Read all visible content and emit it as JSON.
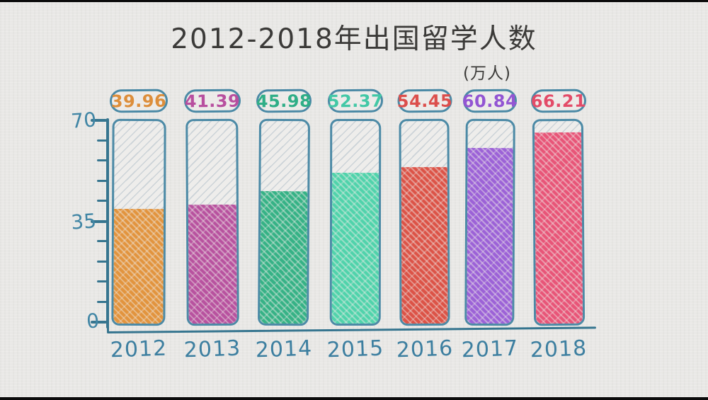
{
  "header": {
    "title": "2012-2018年出国留学人数",
    "unit": "(万人)"
  },
  "y_axis": {
    "labels": [
      "70",
      "35",
      "0"
    ],
    "max": 70,
    "min": 0,
    "minor_step": 7
  },
  "chart_data": {
    "type": "bar",
    "title": "2012-2018年出国留学人数",
    "ylabel": "万人",
    "ylim": [
      0,
      70
    ],
    "y_major_ticks": [
      0,
      35,
      70
    ],
    "y_minor_step": 7,
    "grid": false,
    "categories": [
      "2012",
      "2013",
      "2014",
      "2015",
      "2016",
      "2017",
      "2018"
    ],
    "values": [
      39.96,
      41.39,
      45.98,
      52.37,
      54.45,
      60.84,
      66.21
    ],
    "bars": [
      {
        "year": "2012",
        "value": 39.96,
        "value_label": "39.96",
        "color": "#e2943e",
        "label_color": "#dd8e3b"
      },
      {
        "year": "2013",
        "value": 41.39,
        "value_label": "41.39",
        "color": "#b8529f",
        "label_color": "#b84f9f"
      },
      {
        "year": "2014",
        "value": 45.98,
        "value_label": "45.98",
        "color": "#36b286",
        "label_color": "#2fae87"
      },
      {
        "year": "2015",
        "value": 52.37,
        "value_label": "52.37",
        "color": "#50d3ab",
        "label_color": "#43c8a6"
      },
      {
        "year": "2016",
        "value": 54.45,
        "value_label": "54.45",
        "color": "#dc5347",
        "label_color": "#dc4f4c"
      },
      {
        "year": "2017",
        "value": 60.84,
        "value_label": "60.84",
        "color": "#9c62d7",
        "label_color": "#9355d3"
      },
      {
        "year": "2018",
        "value": 66.21,
        "value_label": "66.21",
        "color": "#e85578",
        "label_color": "#e34b68"
      }
    ]
  },
  "colors": {
    "paper": "#e9e8e6",
    "axis": "#36758f",
    "outline": "#4c8aa6",
    "tick_label": "#4186a5",
    "title_text": "#3b3a38",
    "empty_fill": "#eeedeb",
    "empty_hatch": "#94a8b8"
  }
}
